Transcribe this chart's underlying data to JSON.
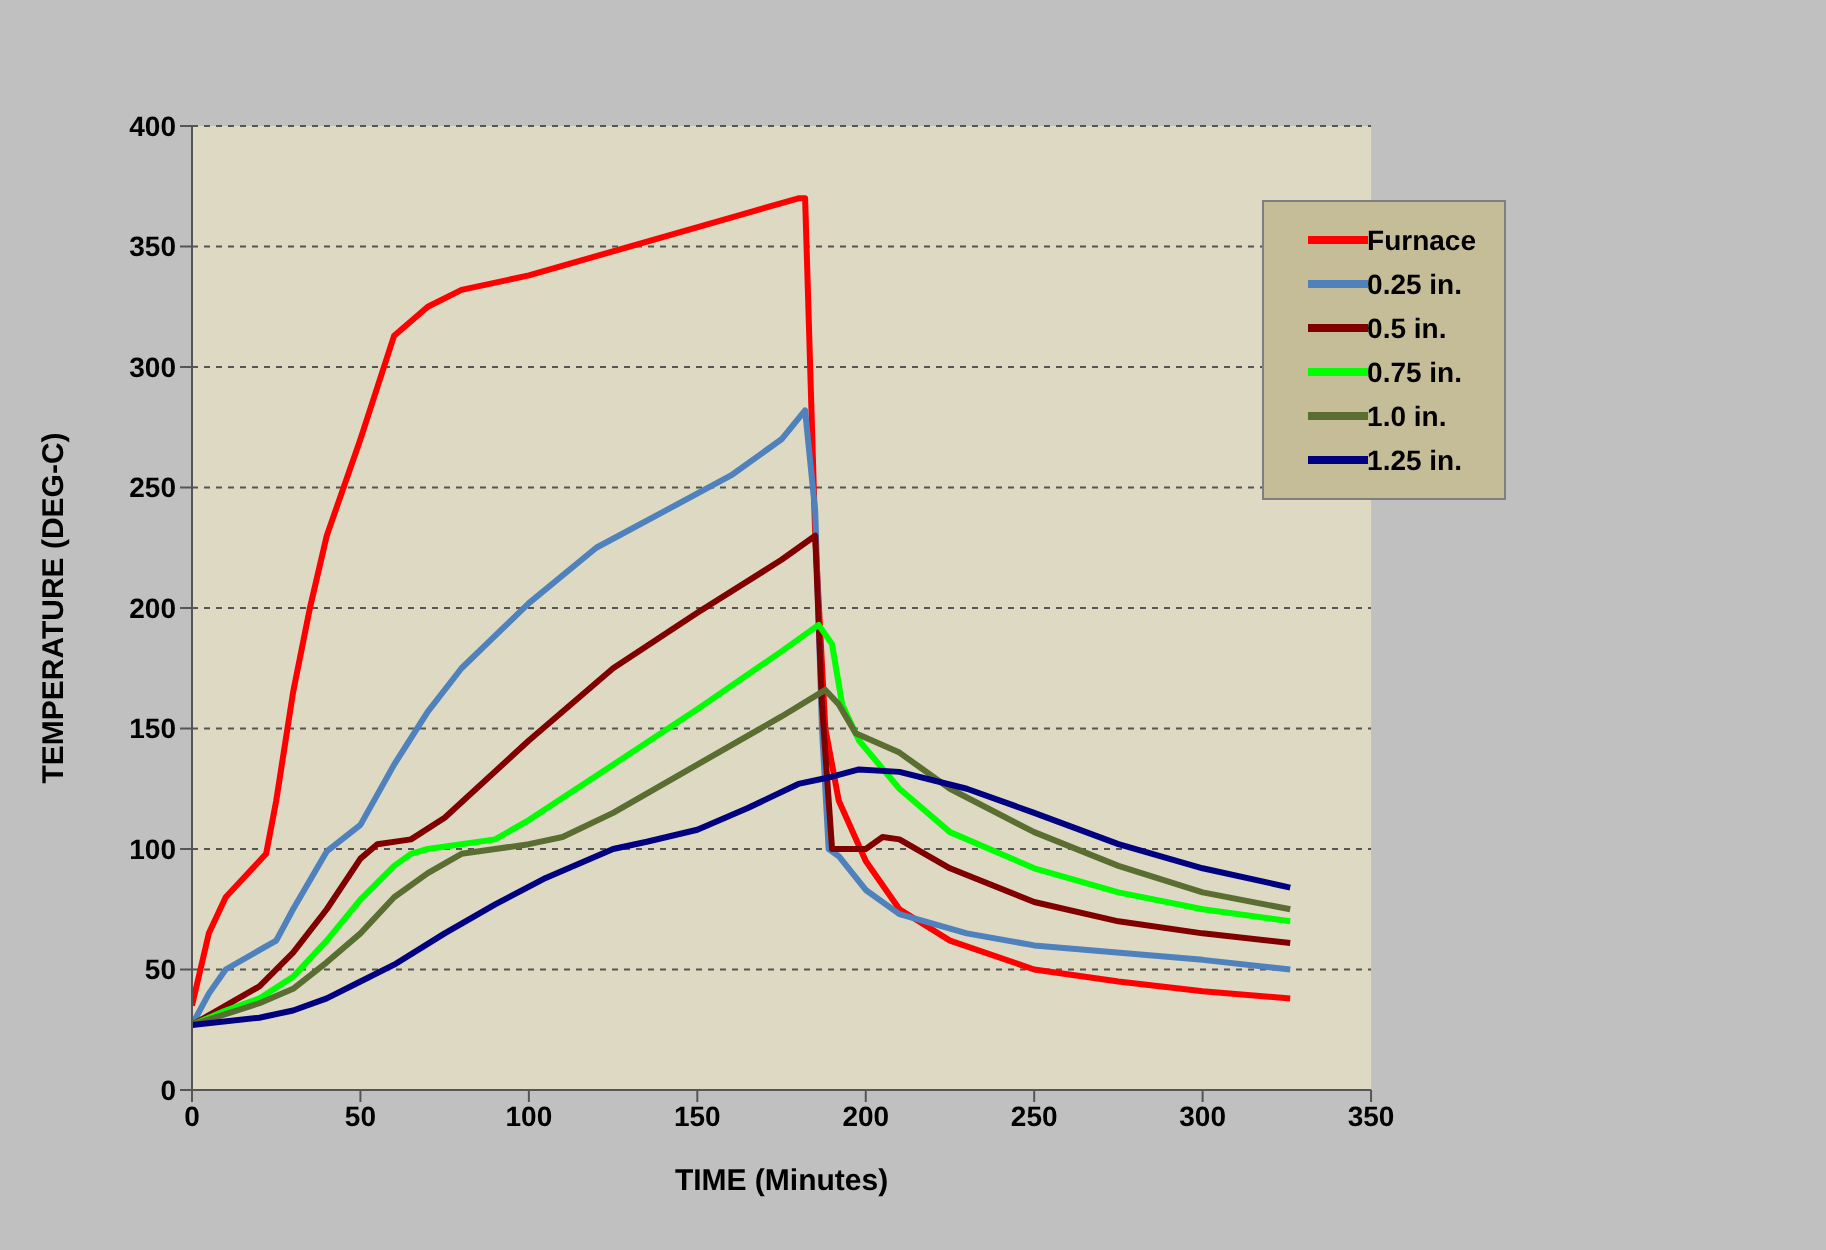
{
  "chart_data": {
    "type": "line",
    "xlabel": "TIME (Minutes)",
    "ylabel": "TEMPERATURE (DEG-C)",
    "xlim": [
      0,
      350
    ],
    "xticks": [
      0,
      50,
      100,
      150,
      200,
      250,
      300,
      350
    ],
    "ylim": [
      0,
      400
    ],
    "yticks": [
      0,
      50,
      100,
      150,
      200,
      250,
      300,
      350,
      400
    ],
    "grid": "y",
    "legend": "top right",
    "marker": "none",
    "line_style": "solid",
    "series": [
      {
        "name": "Furnace",
        "color": "#ff0000",
        "x": [
          0,
          5,
          10,
          20,
          22,
          25,
          30,
          35,
          40,
          50,
          60,
          70,
          80,
          100,
          120,
          140,
          160,
          180,
          182,
          185,
          188,
          192,
          200,
          210,
          225,
          250,
          275,
          300,
          326
        ],
        "values": [
          35,
          65,
          80,
          95,
          98,
          120,
          165,
          200,
          230,
          270,
          313,
          325,
          332,
          338,
          346,
          354,
          362,
          370,
          370,
          230,
          150,
          120,
          95,
          75,
          62,
          50,
          45,
          41,
          38
        ]
      },
      {
        "name": "0.25 in.",
        "color": "#4f81bd",
        "x": [
          0,
          5,
          10,
          20,
          25,
          30,
          40,
          50,
          60,
          70,
          80,
          100,
          120,
          140,
          160,
          175,
          182,
          185,
          187,
          189,
          192,
          200,
          210,
          230,
          250,
          300,
          326
        ],
        "values": [
          27,
          40,
          50,
          58,
          62,
          75,
          99,
          110,
          135,
          157,
          175,
          202,
          225,
          240,
          255,
          270,
          282,
          240,
          150,
          100,
          97,
          83,
          73,
          65,
          60,
          54,
          50
        ]
      },
      {
        "name": "0.5 in.",
        "color": "#800000",
        "x": [
          0,
          10,
          20,
          30,
          40,
          50,
          55,
          65,
          75,
          100,
          125,
          150,
          175,
          185,
          187,
          188,
          190,
          197,
          200,
          205,
          210,
          225,
          250,
          275,
          300,
          326
        ],
        "values": [
          27,
          35,
          43,
          57,
          75,
          96,
          102,
          104,
          113,
          145,
          175,
          198,
          220,
          230,
          160,
          140,
          100,
          100,
          100,
          105,
          104,
          92,
          78,
          70,
          65,
          61
        ]
      },
      {
        "name": "0.75 in.",
        "color": "#00ff00",
        "x": [
          0,
          10,
          20,
          30,
          40,
          50,
          60,
          65,
          70,
          90,
          100,
          125,
          150,
          175,
          186,
          190,
          193,
          198,
          210,
          225,
          250,
          275,
          300,
          326
        ],
        "values": [
          27,
          33,
          38,
          47,
          62,
          79,
          93,
          98,
          100,
          104,
          112,
          135,
          158,
          182,
          193,
          185,
          160,
          145,
          125,
          107,
          92,
          82,
          75,
          70
        ]
      },
      {
        "name": "1.0 in.",
        "color": "#5a6e32",
        "x": [
          0,
          20,
          30,
          40,
          50,
          60,
          70,
          80,
          90,
          100,
          110,
          125,
          150,
          175,
          188,
          192,
          197,
          210,
          225,
          250,
          275,
          300,
          326
        ],
        "values": [
          27,
          36,
          42,
          53,
          65,
          80,
          90,
          98,
          100,
          102,
          105,
          115,
          135,
          155,
          166,
          160,
          148,
          140,
          125,
          107,
          93,
          82,
          75
        ]
      },
      {
        "name": "1.25 in.",
        "color": "#000080",
        "x": [
          0,
          20,
          30,
          40,
          50,
          60,
          75,
          90,
          105,
          125,
          135,
          150,
          165,
          180,
          190,
          198,
          210,
          230,
          250,
          275,
          300,
          326
        ],
        "values": [
          27,
          30,
          33,
          38,
          45,
          52,
          65,
          77,
          88,
          100,
          103,
          108,
          117,
          127,
          130,
          133,
          132,
          125,
          115,
          102,
          92,
          84
        ]
      }
    ]
  }
}
